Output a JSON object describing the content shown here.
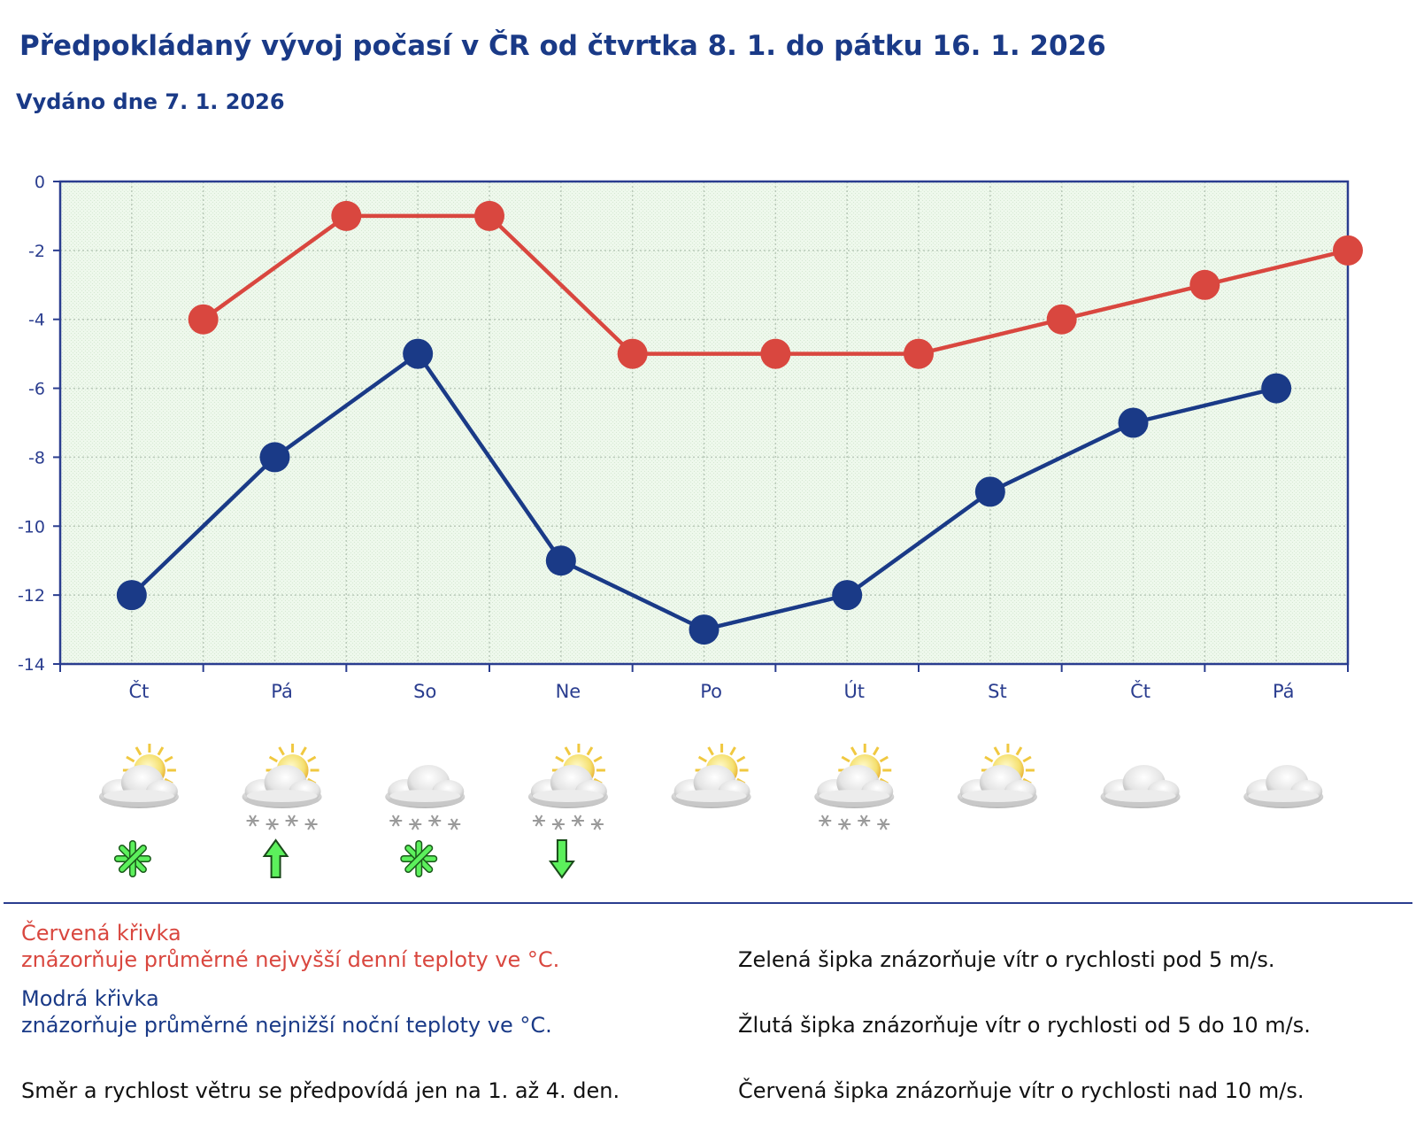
{
  "header": {
    "title": "Předpokládaný vývoj počasí v ČR od čtvrtka 8. 1. do pátku 16. 1. 2026",
    "issued": "Vydáno dne 7. 1. 2026"
  },
  "chart_data": {
    "type": "line",
    "y_ticks": [
      "0",
      "-2",
      "-4",
      "-6",
      "-8",
      "-10",
      "-12",
      "-14"
    ],
    "ylim": [
      -14,
      0
    ],
    "grid": true,
    "day_labels": [
      "Čt",
      "Pá",
      "So",
      "Ne",
      "Po",
      "Út",
      "St",
      "Čt",
      "Pá"
    ],
    "series": [
      {
        "key": "max",
        "color": "#d9473f",
        "x": [
          1,
          2,
          3,
          4,
          5,
          6,
          7,
          8,
          9
        ],
        "values": [
          -4,
          -1,
          -1,
          -5,
          -5,
          -5,
          -4,
          -3,
          -2
        ]
      },
      {
        "key": "min",
        "color": "#1a3a87",
        "x": [
          0.5,
          1.5,
          2.5,
          3.5,
          4.5,
          5.5,
          6.5,
          7.5,
          8.5
        ],
        "values": [
          -12,
          -8,
          -5,
          -11,
          -13,
          -12,
          -9,
          -7,
          -6
        ]
      }
    ]
  },
  "weather_icons": [
    {
      "day": "Čt",
      "icon": "sun-cloud-icon",
      "snow": false,
      "wind": "green-star-icon"
    },
    {
      "day": "Pá",
      "icon": "sun-cloud-icon",
      "snow": true,
      "wind": "green-arrow-up-icon"
    },
    {
      "day": "So",
      "icon": "cloud-icon",
      "snow": true,
      "wind": "green-star-icon"
    },
    {
      "day": "Ne",
      "icon": "sun-cloud-icon",
      "snow": true,
      "wind": "green-arrow-down-icon"
    },
    {
      "day": "Po",
      "icon": "sun-cloud-icon",
      "snow": false,
      "wind": null
    },
    {
      "day": "Út",
      "icon": "sun-cloud-icon",
      "snow": true,
      "wind": null
    },
    {
      "day": "St",
      "icon": "sun-cloud-icon",
      "snow": false,
      "wind": null
    },
    {
      "day": "Čt",
      "icon": "cloud-icon",
      "snow": false,
      "wind": null
    },
    {
      "day": "Pá",
      "icon": "cloud-icon",
      "snow": false,
      "wind": null
    }
  ],
  "legend": {
    "red_title": "Červená křivka",
    "red_desc": "znázorňuje průměrné nejvyšší denní teploty ve °C.",
    "blue_title": "Modrá křivka",
    "blue_desc": "znázorňuje průměrné nejnižší noční teploty ve °C.",
    "wind_note": "Směr a rychlost větru se předpovídá jen na 1. až 4. den.",
    "green_arrow": "Zelená šipka znázorňuje vítr o rychlosti pod 5 m/s.",
    "yellow_arrow": "Žlutá šipka znázorňuje vítr o rychlosti od 5 do 10 m/s.",
    "red_arrow": "Červená šipka znázorňuje vítr o rychlosti nad 10 m/s."
  },
  "colors": {
    "title": "#1a3a87",
    "plot_bg": "#eef8ec",
    "grid": "#b9c9b9",
    "frame": "#2a3d8f",
    "wind_arrow": "#5cf05c"
  }
}
